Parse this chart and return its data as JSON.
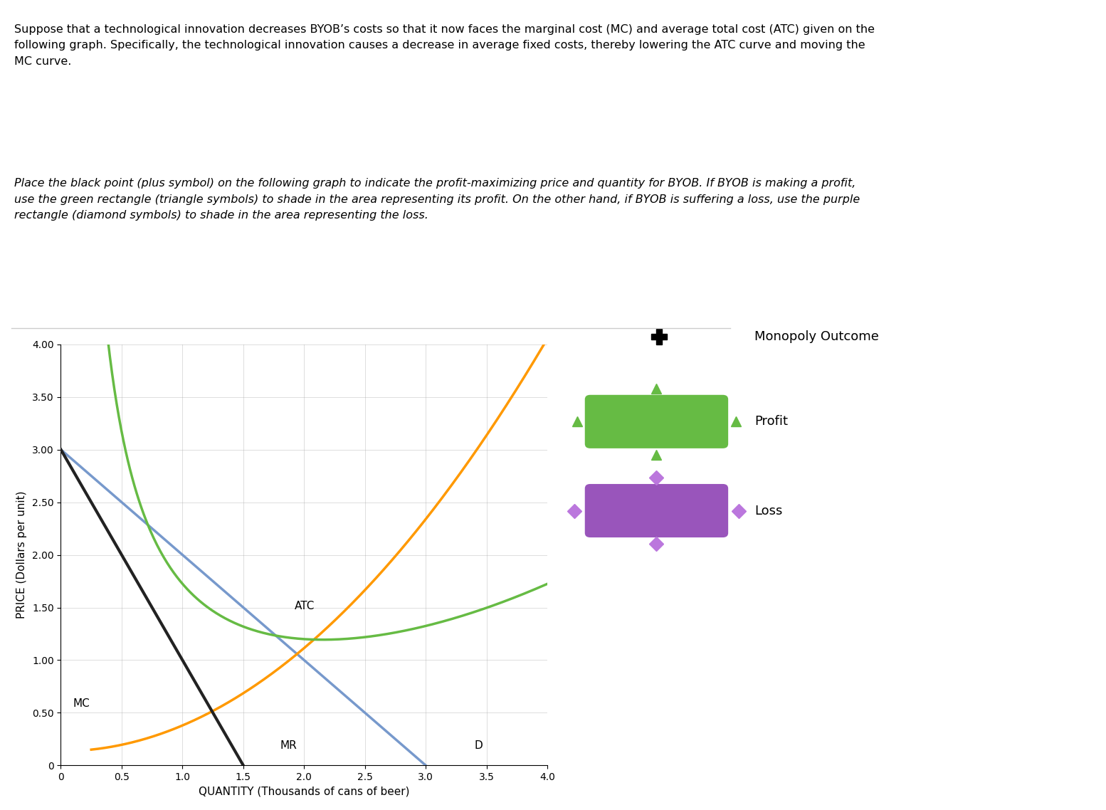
{
  "xlabel": "QUANTITY (Thousands of cans of beer)",
  "ylabel": "PRICE (Dollars per unit)",
  "xlim": [
    0,
    4.0
  ],
  "ylim": [
    0,
    4.0
  ],
  "xticks": [
    0,
    0.5,
    1.0,
    1.5,
    2.0,
    2.5,
    3.0,
    3.5,
    4.0
  ],
  "yticks": [
    0,
    0.5,
    1.0,
    1.5,
    2.0,
    2.5,
    3.0,
    3.5,
    4.0
  ],
  "D_color": "#7799CC",
  "MR_color": "#336699",
  "MC_color": "#FF9900",
  "ATC_color": "#66BB44",
  "black_line_color": "#222222",
  "profit_color": "#66BB44",
  "loss_color": "#9955BB",
  "legend_labels": [
    "Monopoly Outcome",
    "Profit",
    "Loss"
  ],
  "title_fontsize": 12,
  "background_color": "#ffffff"
}
